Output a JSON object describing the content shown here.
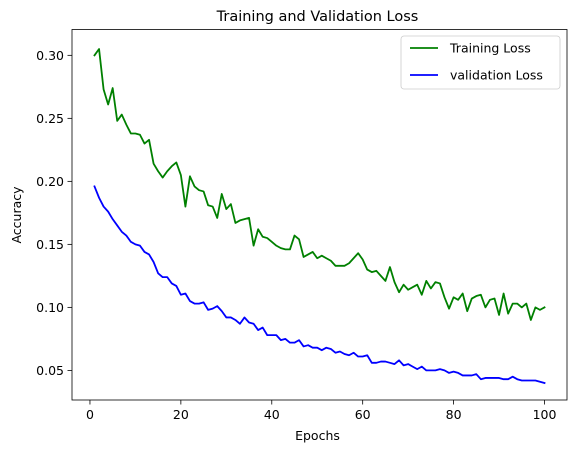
{
  "chart_data": {
    "type": "line",
    "title": "Training and Validation Loss",
    "xlabel": "Epochs",
    "ylabel": "Accuracy",
    "xlim": [
      -3.95,
      104.95
    ],
    "ylim": [
      0.0265,
      0.3205
    ],
    "xticks": [
      0,
      20,
      40,
      60,
      80,
      100
    ],
    "yticks": [
      0.05,
      0.1,
      0.15,
      0.2,
      0.25,
      0.3
    ],
    "ytick_labels": [
      "0.05",
      "0.10",
      "0.15",
      "0.20",
      "0.25",
      "0.30"
    ],
    "grid": false,
    "legend_position": "top-right",
    "series": [
      {
        "name": "Training Loss",
        "color": "#008000",
        "x": [
          1,
          2,
          3,
          4,
          5,
          6,
          7,
          8,
          9,
          10,
          11,
          12,
          13,
          14,
          15,
          16,
          17,
          18,
          19,
          20,
          21,
          22,
          23,
          24,
          25,
          26,
          27,
          28,
          29,
          30,
          31,
          32,
          33,
          34,
          35,
          36,
          37,
          38,
          39,
          40,
          41,
          42,
          43,
          44,
          45,
          46,
          47,
          48,
          49,
          50,
          51,
          52,
          53,
          54,
          55,
          56,
          57,
          58,
          59,
          60,
          61,
          62,
          63,
          64,
          65,
          66,
          67,
          68,
          69,
          70,
          71,
          72,
          73,
          74,
          75,
          76,
          77,
          78,
          79,
          80,
          81,
          82,
          83,
          84,
          85,
          86,
          87,
          88,
          89,
          90,
          91,
          92,
          93,
          94,
          95,
          96,
          97,
          98,
          99,
          100
        ],
        "values": [
          0.3,
          0.305,
          0.273,
          0.261,
          0.274,
          0.248,
          0.253,
          0.245,
          0.238,
          0.238,
          0.237,
          0.23,
          0.233,
          0.214,
          0.208,
          0.203,
          0.208,
          0.212,
          0.215,
          0.205,
          0.18,
          0.204,
          0.196,
          0.193,
          0.192,
          0.181,
          0.18,
          0.171,
          0.19,
          0.178,
          0.182,
          0.167,
          0.169,
          0.17,
          0.171,
          0.149,
          0.162,
          0.156,
          0.155,
          0.152,
          0.149,
          0.147,
          0.146,
          0.146,
          0.157,
          0.154,
          0.14,
          0.142,
          0.144,
          0.139,
          0.141,
          0.139,
          0.137,
          0.133,
          0.133,
          0.133,
          0.135,
          0.139,
          0.143,
          0.138,
          0.13,
          0.128,
          0.129,
          0.125,
          0.121,
          0.132,
          0.12,
          0.112,
          0.118,
          0.114,
          0.116,
          0.118,
          0.11,
          0.121,
          0.115,
          0.12,
          0.119,
          0.108,
          0.099,
          0.108,
          0.106,
          0.111,
          0.097,
          0.107,
          0.109,
          0.11,
          0.1,
          0.106,
          0.107,
          0.094,
          0.111,
          0.095,
          0.103,
          0.103,
          0.1,
          0.103,
          0.09,
          0.1,
          0.098,
          0.1
        ]
      },
      {
        "name": "validation Loss",
        "color": "#0000ff",
        "x": [
          1,
          2,
          3,
          4,
          5,
          6,
          7,
          8,
          9,
          10,
          11,
          12,
          13,
          14,
          15,
          16,
          17,
          18,
          19,
          20,
          21,
          22,
          23,
          24,
          25,
          26,
          27,
          28,
          29,
          30,
          31,
          32,
          33,
          34,
          35,
          36,
          37,
          38,
          39,
          40,
          41,
          42,
          43,
          44,
          45,
          46,
          47,
          48,
          49,
          50,
          51,
          52,
          53,
          54,
          55,
          56,
          57,
          58,
          59,
          60,
          61,
          62,
          63,
          64,
          65,
          66,
          67,
          68,
          69,
          70,
          71,
          72,
          73,
          74,
          75,
          76,
          77,
          78,
          79,
          80,
          81,
          82,
          83,
          84,
          85,
          86,
          87,
          88,
          89,
          90,
          91,
          92,
          93,
          94,
          95,
          96,
          97,
          98,
          99,
          100
        ],
        "values": [
          0.196,
          0.187,
          0.18,
          0.176,
          0.17,
          0.165,
          0.16,
          0.157,
          0.152,
          0.15,
          0.149,
          0.144,
          0.142,
          0.136,
          0.127,
          0.124,
          0.124,
          0.119,
          0.117,
          0.11,
          0.111,
          0.105,
          0.103,
          0.103,
          0.104,
          0.098,
          0.099,
          0.101,
          0.097,
          0.092,
          0.092,
          0.09,
          0.087,
          0.092,
          0.088,
          0.087,
          0.082,
          0.084,
          0.078,
          0.078,
          0.078,
          0.074,
          0.075,
          0.072,
          0.072,
          0.074,
          0.069,
          0.07,
          0.068,
          0.068,
          0.066,
          0.068,
          0.067,
          0.064,
          0.065,
          0.063,
          0.062,
          0.064,
          0.061,
          0.061,
          0.062,
          0.056,
          0.056,
          0.057,
          0.057,
          0.056,
          0.055,
          0.058,
          0.054,
          0.055,
          0.053,
          0.051,
          0.053,
          0.05,
          0.05,
          0.05,
          0.051,
          0.05,
          0.048,
          0.049,
          0.048,
          0.046,
          0.046,
          0.046,
          0.047,
          0.043,
          0.044,
          0.044,
          0.044,
          0.044,
          0.043,
          0.043,
          0.045,
          0.043,
          0.042,
          0.042,
          0.042,
          0.042,
          0.041,
          0.04
        ]
      }
    ]
  }
}
